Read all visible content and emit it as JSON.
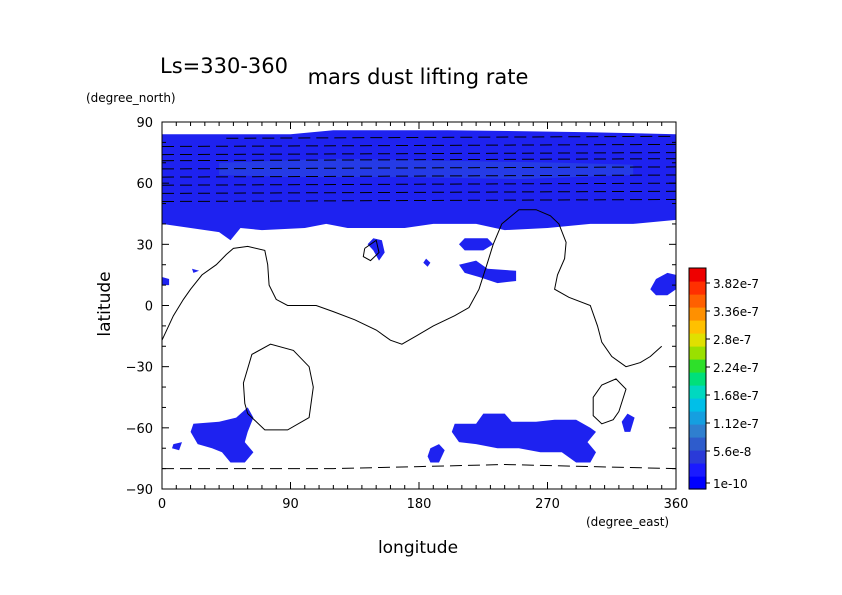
{
  "chart_data": {
    "type": "heatmap",
    "title": "mars dust lifting rate",
    "subtitle": "Ls=330-360",
    "xlabel": "longitude",
    "ylabel": "latitude",
    "x_units": "(degree_east)",
    "y_units": "(degree_north)",
    "xlim": [
      0,
      360
    ],
    "ylim": [
      -90,
      90
    ],
    "x_ticks": [
      "0",
      "90",
      "180",
      "270",
      "360"
    ],
    "y_ticks": [
      "90",
      "60",
      "30",
      "0",
      "−30",
      "−60",
      "−90"
    ],
    "grid": false,
    "colorbar": {
      "placement": "right",
      "labels": [
        "3.82e-7",
        "3.36e-7",
        "2.8e-7",
        "2.24e-7",
        "1.68e-7",
        "1.12e-7",
        "5.6e-8",
        "1e-10"
      ],
      "colors": [
        "#0000ff",
        "#1a1aff",
        "#2a3ad8",
        "#2e5ccc",
        "#2f7fcf",
        "#159fe0",
        "#00bfe8",
        "#00d8c0",
        "#00e07a",
        "#2ee02a",
        "#9ae000",
        "#e0e000",
        "#ffc000",
        "#ff9000",
        "#ff6000",
        "#ff3000",
        "#ee0000"
      ]
    },
    "field_color": "#1e22f0",
    "field_regions": [
      {
        "name": "north-polar-band",
        "points": [
          [
            0,
            84
          ],
          [
            90,
            84
          ],
          [
            120,
            86
          ],
          [
            200,
            86
          ],
          [
            300,
            85
          ],
          [
            360,
            84
          ],
          [
            360,
            42
          ],
          [
            330,
            40
          ],
          [
            300,
            40
          ],
          [
            270,
            38
          ],
          [
            240,
            37
          ],
          [
            220,
            40
          ],
          [
            190,
            40
          ],
          [
            170,
            38
          ],
          [
            130,
            38
          ],
          [
            115,
            40
          ],
          [
            100,
            38
          ],
          [
            70,
            37
          ],
          [
            55,
            38
          ],
          [
            48,
            32
          ],
          [
            40,
            36
          ],
          [
            20,
            38
          ],
          [
            0,
            40
          ]
        ]
      },
      {
        "name": "blob-150-30",
        "points": [
          [
            144,
            30
          ],
          [
            148,
            27
          ],
          [
            152,
            22
          ],
          [
            156,
            26
          ],
          [
            154,
            32
          ],
          [
            148,
            33
          ]
        ]
      },
      {
        "name": "blob-205-30",
        "points": [
          [
            208,
            30
          ],
          [
            212,
            33
          ],
          [
            228,
            33
          ],
          [
            232,
            30
          ],
          [
            225,
            27
          ],
          [
            212,
            27
          ]
        ]
      },
      {
        "name": "blob-220-15",
        "points": [
          [
            208,
            20
          ],
          [
            220,
            22
          ],
          [
            228,
            18
          ],
          [
            248,
            17
          ],
          [
            248,
            12
          ],
          [
            235,
            11
          ],
          [
            222,
            14
          ],
          [
            212,
            16
          ]
        ]
      },
      {
        "name": "blob-185-22",
        "points": [
          [
            185,
            23
          ],
          [
            188,
            21
          ],
          [
            186,
            19
          ],
          [
            183,
            21
          ]
        ]
      },
      {
        "name": "blob-0-12",
        "points": [
          [
            0,
            14
          ],
          [
            5,
            13
          ],
          [
            5,
            10
          ],
          [
            0,
            10
          ]
        ]
      },
      {
        "name": "blob-20-17",
        "points": [
          [
            21,
            18
          ],
          [
            26,
            17
          ],
          [
            22,
            16
          ]
        ]
      },
      {
        "name": "blob-360-10",
        "points": [
          [
            342,
            8
          ],
          [
            346,
            13
          ],
          [
            354,
            16
          ],
          [
            360,
            15
          ],
          [
            360,
            8
          ],
          [
            354,
            5
          ],
          [
            346,
            5
          ]
        ]
      },
      {
        "name": "south-blob-40-65",
        "points": [
          [
            22,
            -58
          ],
          [
            40,
            -57
          ],
          [
            52,
            -55
          ],
          [
            60,
            -50
          ],
          [
            64,
            -55
          ],
          [
            60,
            -62
          ],
          [
            58,
            -67
          ],
          [
            64,
            -72
          ],
          [
            58,
            -77
          ],
          [
            48,
            -77
          ],
          [
            42,
            -72
          ],
          [
            35,
            -70
          ],
          [
            25,
            -68
          ],
          [
            20,
            -62
          ]
        ]
      },
      {
        "name": "south-blob-10-70",
        "points": [
          [
            8,
            -68
          ],
          [
            14,
            -67
          ],
          [
            12,
            -71
          ],
          [
            7,
            -70
          ]
        ]
      },
      {
        "name": "south-blob-260-65",
        "points": [
          [
            205,
            -58
          ],
          [
            220,
            -58
          ],
          [
            225,
            -53
          ],
          [
            240,
            -53
          ],
          [
            245,
            -57
          ],
          [
            262,
            -57
          ],
          [
            275,
            -56
          ],
          [
            290,
            -56
          ],
          [
            300,
            -60
          ],
          [
            304,
            -62
          ],
          [
            298,
            -67
          ],
          [
            304,
            -72
          ],
          [
            300,
            -77
          ],
          [
            290,
            -77
          ],
          [
            280,
            -72
          ],
          [
            265,
            -72
          ],
          [
            250,
            -70
          ],
          [
            235,
            -70
          ],
          [
            220,
            -68
          ],
          [
            208,
            -67
          ],
          [
            203,
            -62
          ]
        ]
      },
      {
        "name": "south-blob-195-75",
        "points": [
          [
            188,
            -70
          ],
          [
            194,
            -68
          ],
          [
            198,
            -71
          ],
          [
            194,
            -77
          ],
          [
            188,
            -77
          ],
          [
            186,
            -74
          ]
        ]
      },
      {
        "name": "south-blob-325-58",
        "points": [
          [
            322,
            -57
          ],
          [
            326,
            -53
          ],
          [
            331,
            -55
          ],
          [
            328,
            -62
          ],
          [
            324,
            -62
          ]
        ]
      }
    ],
    "contour_lines": [
      {
        "name": "equatorial-contour",
        "style": "solid",
        "points": [
          [
            0,
            -17
          ],
          [
            8,
            -5
          ],
          [
            15,
            3
          ],
          [
            20,
            8
          ],
          [
            28,
            15
          ],
          [
            38,
            20
          ],
          [
            45,
            25
          ],
          [
            50,
            28
          ],
          [
            60,
            29
          ],
          [
            72,
            27
          ],
          [
            74,
            20
          ],
          [
            75,
            10
          ],
          [
            80,
            3
          ],
          [
            88,
            0
          ],
          [
            96,
            0
          ],
          [
            108,
            0
          ],
          [
            120,
            -3
          ],
          [
            135,
            -7
          ],
          [
            150,
            -12
          ],
          [
            160,
            -17
          ],
          [
            168,
            -19
          ],
          [
            178,
            -15
          ],
          [
            190,
            -10
          ],
          [
            205,
            -5
          ],
          [
            215,
            -1
          ],
          [
            222,
            8
          ],
          [
            228,
            21
          ],
          [
            232,
            30
          ],
          [
            238,
            40
          ],
          [
            250,
            47
          ],
          [
            262,
            47
          ],
          [
            272,
            44
          ],
          [
            278,
            40
          ],
          [
            283,
            31
          ],
          [
            282,
            23
          ],
          [
            277,
            15
          ],
          [
            275,
            8
          ],
          [
            285,
            4
          ],
          [
            300,
            0
          ],
          [
            305,
            -10
          ],
          [
            308,
            -18
          ],
          [
            315,
            -25
          ],
          [
            325,
            -30
          ],
          [
            335,
            -28
          ],
          [
            342,
            -25
          ],
          [
            350,
            -20
          ]
        ]
      },
      {
        "name": "north-small-contour",
        "style": "solid",
        "points": [
          [
            142,
            28
          ],
          [
            150,
            32
          ],
          [
            152,
            26
          ],
          [
            146,
            22
          ],
          [
            141,
            24
          ],
          [
            142,
            28
          ]
        ]
      },
      {
        "name": "south-oval-contour",
        "style": "solid",
        "points": [
          [
            60,
            -53
          ],
          [
            72,
            -61
          ],
          [
            88,
            -61
          ],
          [
            103,
            -55
          ],
          [
            106,
            -40
          ],
          [
            103,
            -30
          ],
          [
            92,
            -22
          ],
          [
            76,
            -19
          ],
          [
            63,
            -24
          ],
          [
            57,
            -38
          ],
          [
            58,
            -48
          ],
          [
            60,
            -53
          ]
        ]
      },
      {
        "name": "south-small-oval-contour",
        "style": "solid",
        "points": [
          [
            320,
            -52
          ],
          [
            316,
            -56
          ],
          [
            308,
            -58
          ],
          [
            302,
            -54
          ],
          [
            302,
            -45
          ],
          [
            308,
            -39
          ],
          [
            318,
            -36
          ],
          [
            325,
            -41
          ],
          [
            320,
            -52
          ]
        ]
      },
      {
        "name": "south-polar-contour",
        "style": "dashed",
        "points": [
          [
            0,
            -80
          ],
          [
            120,
            -80
          ],
          [
            180,
            -79
          ],
          [
            240,
            -78
          ],
          [
            300,
            -79
          ],
          [
            360,
            -80
          ]
        ]
      },
      {
        "name": "north-dashed-1",
        "style": "dashed",
        "points": [
          [
            45,
            82
          ],
          [
            360,
            83
          ]
        ]
      },
      {
        "name": "north-dashed-2",
        "style": "dashed",
        "points": [
          [
            0,
            78
          ],
          [
            360,
            79
          ]
        ]
      },
      {
        "name": "north-dashed-3",
        "style": "dashed",
        "points": [
          [
            0,
            74
          ],
          [
            360,
            75
          ]
        ]
      },
      {
        "name": "north-dashed-4",
        "style": "dashed",
        "points": [
          [
            0,
            71
          ],
          [
            360,
            72
          ]
        ]
      },
      {
        "name": "north-dashed-5",
        "style": "dashed",
        "points": [
          [
            0,
            67
          ],
          [
            360,
            68
          ]
        ]
      },
      {
        "name": "north-dashed-6",
        "style": "dashed",
        "points": [
          [
            0,
            63
          ],
          [
            360,
            64
          ]
        ]
      },
      {
        "name": "north-dashed-7",
        "style": "dashed",
        "points": [
          [
            0,
            59
          ],
          [
            360,
            60
          ]
        ]
      },
      {
        "name": "north-dashed-8",
        "style": "dashed",
        "points": [
          [
            0,
            55
          ],
          [
            360,
            56
          ]
        ]
      },
      {
        "name": "north-dashed-9",
        "style": "dashed",
        "points": [
          [
            0,
            51
          ],
          [
            360,
            52
          ]
        ]
      }
    ]
  }
}
